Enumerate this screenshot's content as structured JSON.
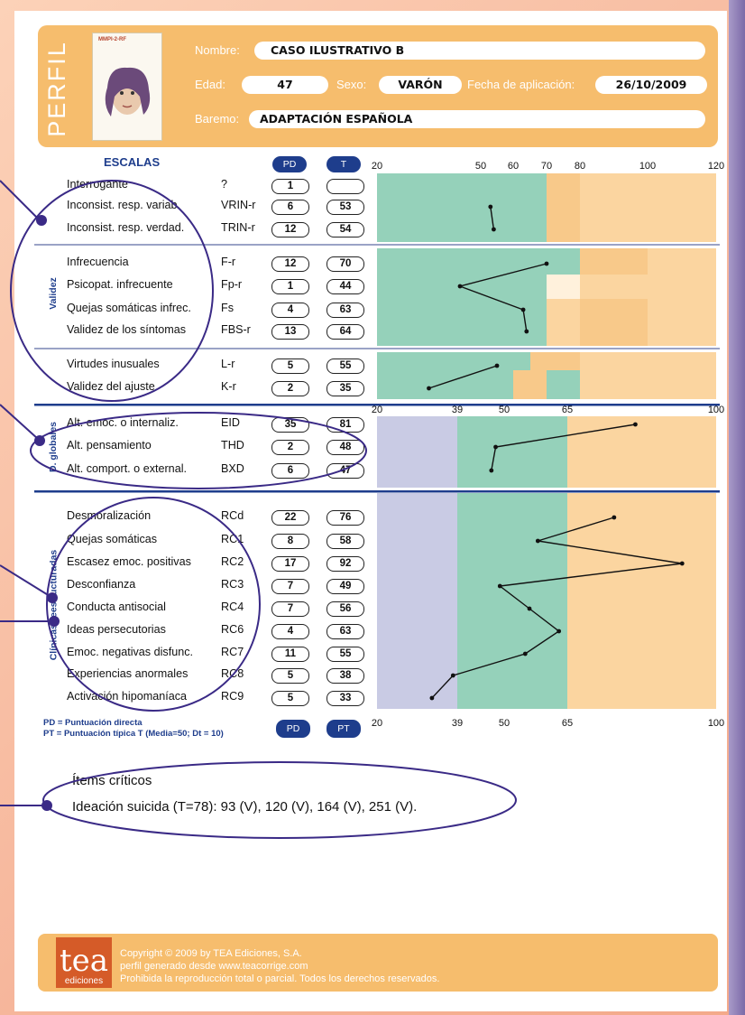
{
  "header": {
    "section_title": "PERFIL",
    "cover": {
      "title": "MMPI-2-RF"
    },
    "fields": {
      "nombre_label": "Nombre:",
      "nombre_value": "CASO ILUSTRATIVO B",
      "edad_label": "Edad:",
      "edad_value": "47",
      "sexo_label": "Sexo:",
      "sexo_value": "VARÓN",
      "fecha_label": "Fecha de aplicación:",
      "fecha_value": "26/10/2009",
      "baremo_label": "Baremo:",
      "baremo_value": "ADAPTACIÓN ESPAÑOLA"
    }
  },
  "scales_header": {
    "title": "ESCALAS",
    "pd": "PD",
    "t": "T"
  },
  "axes": {
    "top": [
      "20",
      "50",
      "60",
      "70",
      "80",
      "100",
      "120"
    ],
    "mid": [
      "20",
      "39",
      "50",
      "65",
      "100"
    ],
    "bottom": [
      "20",
      "39",
      "50",
      "65",
      "100"
    ]
  },
  "groups": {
    "validez": "Validez",
    "globales": "D. globales",
    "clinicas": "Clínicas reestructuradas"
  },
  "rows": [
    {
      "name": "Interrogante",
      "abbr": "?",
      "pd": "1",
      "t": ""
    },
    {
      "name": "Inconsist. resp. variab.",
      "abbr": "VRIN-r",
      "pd": "6",
      "t": "53"
    },
    {
      "name": "Inconsist. resp. verdad.",
      "abbr": "TRIN-r",
      "pd": "12",
      "t": "54"
    },
    {
      "name": "Infrecuencia",
      "abbr": "F-r",
      "pd": "12",
      "t": "70"
    },
    {
      "name": "Psicopat. infrecuente",
      "abbr": "Fp-r",
      "pd": "1",
      "t": "44"
    },
    {
      "name": "Quejas somáticas infrec.",
      "abbr": "Fs",
      "pd": "4",
      "t": "63"
    },
    {
      "name": "Validez de los síntomas",
      "abbr": "FBS-r",
      "pd": "13",
      "t": "64"
    },
    {
      "name": "Virtudes inusuales",
      "abbr": "L-r",
      "pd": "5",
      "t": "55"
    },
    {
      "name": "Validez del ajuste",
      "abbr": "K-r",
      "pd": "2",
      "t": "35"
    },
    {
      "name": "Alt. emoc. o internaliz.",
      "abbr": "EID",
      "pd": "35",
      "t": "81"
    },
    {
      "name": "Alt. pensamiento",
      "abbr": "THD",
      "pd": "2",
      "t": "48"
    },
    {
      "name": "Alt. comport. o external.",
      "abbr": "BXD",
      "pd": "6",
      "t": "47"
    },
    {
      "name": "Desmoralización",
      "abbr": "RCd",
      "pd": "22",
      "t": "76"
    },
    {
      "name": "Quejas somáticas",
      "abbr": "RC1",
      "pd": "8",
      "t": "58"
    },
    {
      "name": "Escasez emoc. positivas",
      "abbr": "RC2",
      "pd": "17",
      "t": "92"
    },
    {
      "name": "Desconfianza",
      "abbr": "RC3",
      "pd": "7",
      "t": "49"
    },
    {
      "name": "Conducta antisocial",
      "abbr": "RC4",
      "pd": "7",
      "t": "56"
    },
    {
      "name": "Ideas persecutorias",
      "abbr": "RC6",
      "pd": "4",
      "t": "63"
    },
    {
      "name": "Emoc. negativas disfunc.",
      "abbr": "RC7",
      "pd": "11",
      "t": "55"
    },
    {
      "name": "Experiencias anormales",
      "abbr": "RC8",
      "pd": "5",
      "t": "38"
    },
    {
      "name": "Activación hipomaníaca",
      "abbr": "RC9",
      "pd": "5",
      "t": "33"
    }
  ],
  "bottom_pills": {
    "pd": "PD",
    "pt": "PT"
  },
  "legend": {
    "line1": "PD = Puntuación directa",
    "line2": "PT = Puntuación típica T (Media=50; Dt = 10)"
  },
  "critical": {
    "title": "Ítems críticos",
    "text": "Ideación suicida (T=78): 93 (V), 120 (V), 164 (V), 251 (V)."
  },
  "footer": {
    "logo_word": "tea",
    "logo_sub": "ediciones",
    "line1": "Copyright © 2009 by TEA Ediciones, S.A.",
    "line2": "perfil generado desde www.teacorrige.com",
    "line3": "Prohibida la reproducción total o parcial. Todos los derechos reservados."
  },
  "colors": {
    "green": "#95d1ba",
    "orange": "#fbd5a0",
    "lavender": "#c9cbe4",
    "navy": "#1e3d8c",
    "header_orange": "#f6bd6d",
    "annotation_purple": "#3a2a86"
  },
  "chart_data": [
    {
      "type": "line",
      "name": "validity",
      "x_axis_ticks": [
        20,
        50,
        60,
        70,
        80,
        100,
        120
      ],
      "xlim": [
        20,
        120
      ],
      "series": [
        {
          "scales": [
            "VRIN-r",
            "TRIN-r"
          ],
          "t": [
            53,
            54
          ]
        },
        {
          "scales": [
            "F-r",
            "Fp-r",
            "Fs",
            "FBS-r"
          ],
          "t": [
            70,
            44,
            63,
            64
          ]
        },
        {
          "scales": [
            "L-r",
            "K-r"
          ],
          "t": [
            55,
            35
          ]
        }
      ]
    },
    {
      "type": "line",
      "name": "higher_order",
      "x_axis_ticks": [
        20,
        39,
        50,
        65,
        100
      ],
      "xlim": [
        20,
        100
      ],
      "series": [
        {
          "scales": [
            "EID",
            "THD",
            "BXD"
          ],
          "t": [
            81,
            48,
            47
          ]
        }
      ]
    },
    {
      "type": "line",
      "name": "restructured_clinical",
      "x_axis_ticks": [
        20,
        39,
        50,
        65,
        100
      ],
      "xlim": [
        20,
        100
      ],
      "series": [
        {
          "scales": [
            "RCd",
            "RC1",
            "RC2",
            "RC3",
            "RC4",
            "RC6",
            "RC7",
            "RC8",
            "RC9"
          ],
          "t": [
            76,
            58,
            92,
            49,
            56,
            63,
            55,
            38,
            33
          ]
        }
      ]
    }
  ]
}
